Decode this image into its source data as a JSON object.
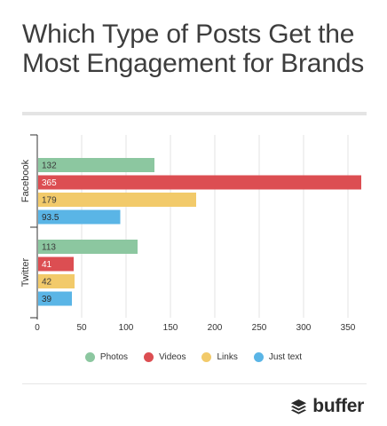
{
  "title": "Which Type of Posts Get the Most Engagement for Brands",
  "brand": {
    "name": "buffer",
    "icon": "buffer-layers-icon"
  },
  "colors": {
    "Photos": "#8cc7a0",
    "Videos": "#dc4e52",
    "Links": "#f2ca6a",
    "Just text": "#5ab5e6"
  },
  "chart_data": {
    "type": "bar",
    "orientation": "horizontal",
    "categories": [
      "Facebook",
      "Twitter"
    ],
    "series": [
      {
        "name": "Photos",
        "values": [
          132,
          113
        ],
        "labels": [
          "132",
          "113"
        ]
      },
      {
        "name": "Videos",
        "values": [
          365,
          41
        ],
        "labels": [
          "365",
          "41"
        ]
      },
      {
        "name": "Links",
        "values": [
          179,
          42
        ],
        "labels": [
          "179",
          "42"
        ]
      },
      {
        "name": "Just text",
        "values": [
          93.5,
          39
        ],
        "labels": [
          "93.5",
          "39"
        ]
      }
    ],
    "xlim": [
      0,
      370
    ],
    "xticks": [
      0,
      50,
      100,
      150,
      200,
      250,
      300,
      350
    ],
    "grid": true,
    "legend": "bottom"
  }
}
